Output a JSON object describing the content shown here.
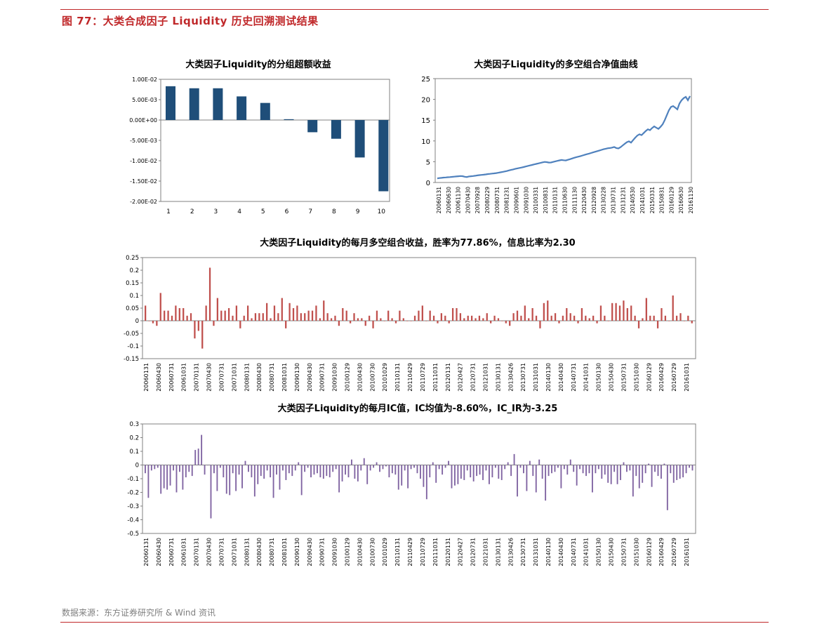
{
  "figure_title": "图 77：大类合成因子 Liquidity 历史回溯测试结果",
  "source": "数据来源：东方证券研究所 & Wind 资讯",
  "colors": {
    "accent": "#c0282a",
    "bar_navy": "#1f4e79",
    "line_blue": "#4f81bd",
    "bar_red": "#c0504d",
    "bar_purple": "#8064a2"
  },
  "chart_data": [
    {
      "type": "bar",
      "title": "大类因子Liquidity的分组超额收益",
      "categories": [
        "1",
        "2",
        "3",
        "4",
        "5",
        "6",
        "7",
        "8",
        "9",
        "10"
      ],
      "values": [
        0.0083,
        0.0078,
        0.0078,
        0.0058,
        0.0042,
        0.0002,
        -0.003,
        -0.0046,
        -0.0092,
        -0.0175
      ],
      "ylim": [
        -0.02,
        0.01
      ],
      "ytick_labels": [
        "1.00E-02",
        "5.00E-03",
        "0.00E+00",
        "-5.00E-03",
        "-1.00E-02",
        "-1.50E-02",
        "-2.00E-02"
      ],
      "ytick_values": [
        0.01,
        0.005,
        0,
        -0.005,
        -0.01,
        -0.015,
        -0.02
      ]
    },
    {
      "type": "line",
      "title": "大类因子Liquidity的多空组合净值曲线",
      "xtick_labels": [
        "20060131",
        "20060630",
        "20061130",
        "20070430",
        "20070928",
        "20080229",
        "20080731",
        "20081231",
        "20090601",
        "20091030",
        "20100331",
        "20100831",
        "20110131",
        "20110630",
        "20111130",
        "20120430",
        "20120928",
        "20130228",
        "20130731",
        "20131231",
        "20140530",
        "20141031",
        "20150331",
        "20150831",
        "20160129",
        "20160630",
        "20161130"
      ],
      "ylim": [
        0,
        25
      ],
      "ytick_values": [
        0,
        5,
        10,
        15,
        20,
        25
      ],
      "series": [
        {
          "values": [
            1.0,
            1.06,
            1.12,
            1.18,
            1.22,
            1.26,
            1.3,
            1.35,
            1.4,
            1.45,
            1.5,
            1.55,
            1.52,
            1.38,
            1.32,
            1.45,
            1.5,
            1.55,
            1.62,
            1.7,
            1.78,
            1.82,
            1.88,
            1.95,
            2.02,
            2.08,
            2.15,
            2.2,
            2.27,
            2.35,
            2.45,
            2.55,
            2.65,
            2.75,
            2.9,
            3.02,
            3.15,
            3.28,
            3.4,
            3.5,
            3.6,
            3.72,
            3.85,
            3.98,
            4.1,
            4.22,
            4.35,
            4.48,
            4.6,
            4.72,
            4.85,
            4.95,
            4.9,
            4.8,
            4.82,
            4.95,
            5.08,
            5.2,
            5.32,
            5.42,
            5.35,
            5.3,
            5.45,
            5.6,
            5.78,
            5.95,
            6.1,
            6.22,
            6.35,
            6.5,
            6.65,
            6.8,
            6.95,
            7.1,
            7.25,
            7.4,
            7.55,
            7.7,
            7.85,
            8.0,
            8.12,
            8.25,
            8.3,
            8.4,
            8.55,
            8.3,
            8.2,
            8.5,
            8.9,
            9.3,
            9.7,
            9.9,
            9.6,
            10.2,
            10.8,
            11.3,
            11.6,
            11.4,
            11.9,
            12.4,
            12.8,
            12.6,
            13.1,
            13.5,
            13.2,
            12.9,
            13.4,
            14.0,
            15.0,
            16.2,
            17.4,
            18.2,
            18.4,
            18.0,
            17.6,
            19.0,
            19.8,
            20.3,
            20.6,
            19.8,
            20.8
          ]
        }
      ]
    },
    {
      "type": "bar",
      "title": "大类因子Liquidity的每月多空组合收益，胜率为77.86%，信息比率为2.30",
      "xtick_labels": [
        "20060131",
        "20060430",
        "20060731",
        "20061031",
        "20070131",
        "20070430",
        "20070731",
        "20071031",
        "20080131",
        "20080430",
        "20080731",
        "20081031",
        "20090130",
        "20090430",
        "20090731",
        "20091030",
        "20100129",
        "20100430",
        "20100730",
        "20101029",
        "20110131",
        "20110429",
        "20110729",
        "20111031",
        "20120131",
        "20120427",
        "20120731",
        "20121031",
        "20130131",
        "20130426",
        "20130731",
        "20131031",
        "20140130",
        "20140430",
        "20140731",
        "20141031",
        "20150130",
        "20150430",
        "20150731",
        "20151030",
        "20160129",
        "20160429",
        "20160729",
        "20161031"
      ],
      "ylim": [
        -0.15,
        0.25
      ],
      "ytick_values": [
        -0.15,
        -0.1,
        -0.05,
        0,
        0.05,
        0.1,
        0.15,
        0.2,
        0.25
      ],
      "ytick_labels": [
        "-0.15",
        "-0.1",
        "-0.05",
        "0",
        "0.05",
        "0.1",
        "0.15",
        "0.2",
        "0.25"
      ],
      "values": [
        0.06,
        0.0,
        -0.01,
        -0.02,
        0.11,
        0.04,
        0.04,
        0.02,
        0.06,
        0.05,
        0.05,
        0.02,
        0.03,
        -0.07,
        -0.04,
        -0.11,
        0.06,
        0.21,
        -0.02,
        0.09,
        0.04,
        0.04,
        0.05,
        0.02,
        0.06,
        -0.03,
        0.02,
        0.06,
        0.01,
        0.03,
        0.03,
        0.03,
        0.07,
        0.01,
        0.06,
        0.03,
        0.09,
        -0.03,
        0.07,
        0.05,
        0.06,
        0.03,
        0.03,
        0.04,
        0.04,
        0.06,
        0.01,
        0.08,
        0.03,
        0.01,
        0.02,
        -0.02,
        0.05,
        0.04,
        -0.01,
        0.03,
        0.01,
        0.01,
        -0.02,
        0.02,
        -0.03,
        0.04,
        0.01,
        0.0,
        0.04,
        0.01,
        -0.01,
        0.04,
        0.01,
        0.0,
        0.0,
        0.02,
        0.04,
        0.06,
        0.0,
        0.04,
        0.02,
        -0.01,
        0.03,
        0.02,
        -0.01,
        0.05,
        0.05,
        0.03,
        0.01,
        0.02,
        0.02,
        0.01,
        0.02,
        0.01,
        0.03,
        -0.01,
        0.02,
        0.01,
        0.0,
        -0.01,
        -0.02,
        0.03,
        0.04,
        0.02,
        0.06,
        0.01,
        0.05,
        0.02,
        -0.03,
        0.07,
        0.08,
        0.02,
        0.03,
        -0.01,
        0.02,
        0.05,
        0.03,
        0.02,
        -0.01,
        0.05,
        0.02,
        0.01,
        0.02,
        -0.01,
        0.06,
        0.02,
        0.0,
        0.07,
        0.07,
        0.06,
        0.08,
        0.05,
        0.06,
        0.02,
        -0.03,
        0.01,
        0.09,
        0.02,
        0.02,
        -0.03,
        0.05,
        0.02,
        0.0,
        0.1,
        0.02,
        0.03,
        0.0,
        0.02,
        -0.01
      ]
    },
    {
      "type": "bar",
      "title": "大类因子Liquidity的每月IC值，IC均值为-8.60%，IC_IR为-3.25",
      "xtick_labels": [
        "20060131",
        "20060430",
        "20060731",
        "20061031",
        "20070131",
        "20070430",
        "20070731",
        "20071031",
        "20080131",
        "20080430",
        "20080731",
        "20081031",
        "20090130",
        "20090430",
        "20090731",
        "20091030",
        "20100129",
        "20100430",
        "20100730",
        "20101029",
        "20110131",
        "20110429",
        "20110729",
        "20111031",
        "20120131",
        "20120427",
        "20120731",
        "20121031",
        "20130131",
        "20130426",
        "20130731",
        "20131031",
        "20140130",
        "20140430",
        "20140731",
        "20141031",
        "20150130",
        "20150430",
        "20150731",
        "20151030",
        "20160129",
        "20160429",
        "20160729",
        "20161031"
      ],
      "ylim": [
        -0.5,
        0.3
      ],
      "ytick_values": [
        -0.5,
        -0.4,
        -0.3,
        -0.2,
        -0.1,
        0,
        0.1,
        0.2,
        0.3
      ],
      "ytick_labels": [
        "-0.5",
        "-0.4",
        "-0.3",
        "-0.2",
        "-0.1",
        "0",
        "0.1",
        "0.2",
        "0.3"
      ],
      "values": [
        -0.06,
        -0.24,
        -0.04,
        -0.03,
        -0.02,
        -0.21,
        -0.17,
        -0.18,
        -0.15,
        -0.04,
        -0.2,
        -0.05,
        -0.18,
        -0.09,
        -0.05,
        -0.08,
        0.11,
        0.12,
        0.22,
        -0.07,
        0.0,
        -0.39,
        -0.06,
        -0.19,
        -0.02,
        -0.09,
        -0.21,
        -0.22,
        -0.06,
        -0.19,
        -0.07,
        -0.17,
        0.03,
        -0.05,
        -0.09,
        -0.23,
        -0.14,
        -0.08,
        -0.1,
        -0.04,
        -0.09,
        -0.24,
        -0.07,
        -0.18,
        -0.04,
        -0.11,
        -0.06,
        -0.08,
        -0.04,
        0.02,
        -0.22,
        -0.05,
        -0.02,
        -0.09,
        -0.07,
        -0.06,
        -0.09,
        -0.1,
        -0.08,
        -0.09,
        -0.05,
        -0.03,
        -0.2,
        -0.12,
        -0.07,
        -0.09,
        0.04,
        -0.1,
        -0.12,
        -0.04,
        0.05,
        -0.14,
        -0.04,
        -0.02,
        0.02,
        -0.05,
        -0.03,
        -0.01,
        -0.09,
        -0.06,
        -0.07,
        -0.18,
        -0.15,
        -0.04,
        -0.17,
        -0.03,
        -0.02,
        -0.06,
        -0.1,
        -0.16,
        -0.25,
        -0.09,
        0.02,
        -0.13,
        -0.03,
        -0.07,
        -0.02,
        0.03,
        -0.17,
        -0.15,
        -0.14,
        -0.1,
        -0.11,
        -0.04,
        -0.09,
        -0.12,
        -0.08,
        -0.07,
        -0.11,
        -0.04,
        -0.14,
        -0.09,
        -0.02,
        -0.1,
        -0.11,
        -0.03,
        0.02,
        -0.08,
        0.08,
        -0.23,
        -0.02,
        -0.06,
        -0.19,
        0.03,
        -0.08,
        -0.2,
        0.04,
        -0.1,
        -0.26,
        -0.08,
        -0.06,
        -0.05,
        -0.02,
        -0.17,
        -0.03,
        -0.07,
        0.04,
        -0.05,
        -0.15,
        -0.03,
        -0.06,
        -0.08,
        -0.06,
        -0.2,
        -0.06,
        -0.03,
        -0.1,
        -0.07,
        -0.13,
        -0.14,
        -0.05,
        -0.14,
        -0.11,
        0.02,
        -0.05,
        -0.04,
        -0.23,
        -0.08,
        -0.17,
        -0.13,
        -0.06,
        0.01,
        -0.16,
        -0.05,
        -0.08,
        -0.1,
        0.01,
        -0.33,
        -0.06,
        -0.13,
        -0.11,
        -0.1,
        -0.09,
        -0.06,
        -0.02,
        -0.04
      ]
    }
  ]
}
